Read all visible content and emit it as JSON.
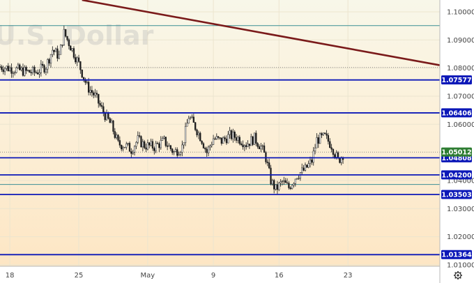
{
  "chart_data": {
    "type": "candlestick",
    "watermark": "U.S. Dollar",
    "ylim": [
      1.0095,
      1.1042
    ],
    "x_day_range": [
      16.8,
      30.2
    ],
    "y_ticks": [
      {
        "value": 1.1,
        "label": "1.10000"
      },
      {
        "value": 1.09,
        "label": "1.09000"
      },
      {
        "value": 1.08,
        "label": "1.08000"
      },
      {
        "value": 1.07,
        "label": "1.07000"
      },
      {
        "value": 1.06,
        "label": "1.06000"
      },
      {
        "value": 1.04,
        "label": "1.04000"
      },
      {
        "value": 1.03,
        "label": "1.03000"
      },
      {
        "value": 1.02,
        "label": "1.02000"
      },
      {
        "value": 1.01,
        "label": "1.01000"
      }
    ],
    "x_ticks": [
      {
        "day": 17.1,
        "label": "18"
      },
      {
        "day": 19.2,
        "label": "25"
      },
      {
        "day": 21.3,
        "label": "May"
      },
      {
        "day": 23.3,
        "label": "9"
      },
      {
        "day": 25.3,
        "label": "16"
      },
      {
        "day": 27.4,
        "label": "23"
      }
    ],
    "levels": [
      {
        "value": 1.07577,
        "label": "1.07577",
        "color": "#0c18b8"
      },
      {
        "value": 1.06406,
        "label": "1.06406",
        "color": "#0c18b8"
      },
      {
        "value": 1.04808,
        "label": "1.04808",
        "color": "#0c18b8"
      },
      {
        "value": 1.042,
        "label": "1.04200",
        "color": "#0c18b8"
      },
      {
        "value": 1.03503,
        "label": "1.03503",
        "color": "#0c18b8"
      },
      {
        "value": 1.01364,
        "label": "1.01364",
        "color": "#0c18b8"
      }
    ],
    "thin_levels": [
      1.0951,
      1.0386
    ],
    "dotted_levels": [
      1.0802,
      1.0501
    ],
    "current_price": {
      "value": 1.05012,
      "label": "1.05012",
      "color": "#2e7d32"
    },
    "trendline": {
      "color": "#7a1a1a",
      "start": {
        "day": 19.3,
        "price": 1.1042
      },
      "end": {
        "day": 30.2,
        "price": 1.081
      }
    },
    "price_path": [
      [
        16.8,
        1.0805
      ],
      [
        17.2,
        1.0797
      ],
      [
        17.6,
        1.0787
      ],
      [
        17.9,
        1.0785
      ],
      [
        18.2,
        1.0807
      ],
      [
        18.4,
        1.0865
      ],
      [
        18.6,
        1.0842
      ],
      [
        18.75,
        1.0925
      ],
      [
        19.0,
        1.0865
      ],
      [
        19.2,
        1.0815
      ],
      [
        19.45,
        1.0735
      ],
      [
        19.7,
        1.07
      ],
      [
        19.95,
        1.0642
      ],
      [
        20.2,
        1.0595
      ],
      [
        20.4,
        1.053
      ],
      [
        20.6,
        1.0525
      ],
      [
        20.8,
        1.051
      ],
      [
        21.0,
        1.0545
      ],
      [
        21.2,
        1.0525
      ],
      [
        21.5,
        1.052
      ],
      [
        21.8,
        1.054
      ],
      [
        22.1,
        1.05
      ],
      [
        22.35,
        1.052
      ],
      [
        22.55,
        1.0628
      ],
      [
        22.75,
        1.059
      ],
      [
        22.95,
        1.0545
      ],
      [
        23.1,
        1.05
      ],
      [
        23.3,
        1.055
      ],
      [
        23.55,
        1.054
      ],
      [
        23.8,
        1.056
      ],
      [
        24.0,
        1.0555
      ],
      [
        24.3,
        1.053
      ],
      [
        24.55,
        1.055
      ],
      [
        24.75,
        1.052
      ],
      [
        24.9,
        1.048
      ],
      [
        25.05,
        1.04
      ],
      [
        25.2,
        1.0368
      ],
      [
        25.4,
        1.0395
      ],
      [
        25.6,
        1.0375
      ],
      [
        25.85,
        1.042
      ],
      [
        26.1,
        1.044
      ],
      [
        26.3,
        1.047
      ],
      [
        26.45,
        1.0545
      ],
      [
        26.7,
        1.0555
      ],
      [
        26.9,
        1.0525
      ],
      [
        27.1,
        1.047
      ],
      [
        27.3,
        1.0501
      ]
    ]
  }
}
